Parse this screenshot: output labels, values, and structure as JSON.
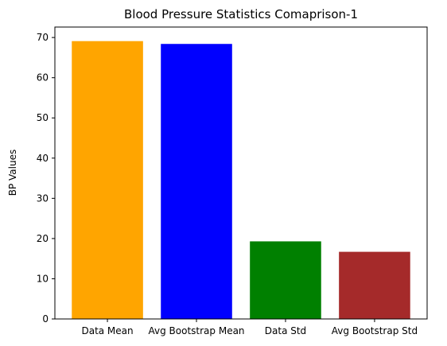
{
  "chart_data": {
    "type": "bar",
    "title": "Blood Pressure Statistics Comaprison-1",
    "xlabel": "",
    "ylabel": "BP Values",
    "categories": [
      "Data Mean",
      "Avg Bootstrap Mean",
      "Data Std",
      "Avg Bootstrap Std"
    ],
    "values": [
      69.1,
      68.4,
      19.3,
      16.7
    ],
    "colors": [
      "#ffa500",
      "#0000ff",
      "#008000",
      "#a52a2a"
    ],
    "ylim": [
      0,
      72.6
    ],
    "yticks": [
      0,
      10,
      20,
      30,
      40,
      50,
      60,
      70
    ],
    "grid": false,
    "legend": "none"
  }
}
